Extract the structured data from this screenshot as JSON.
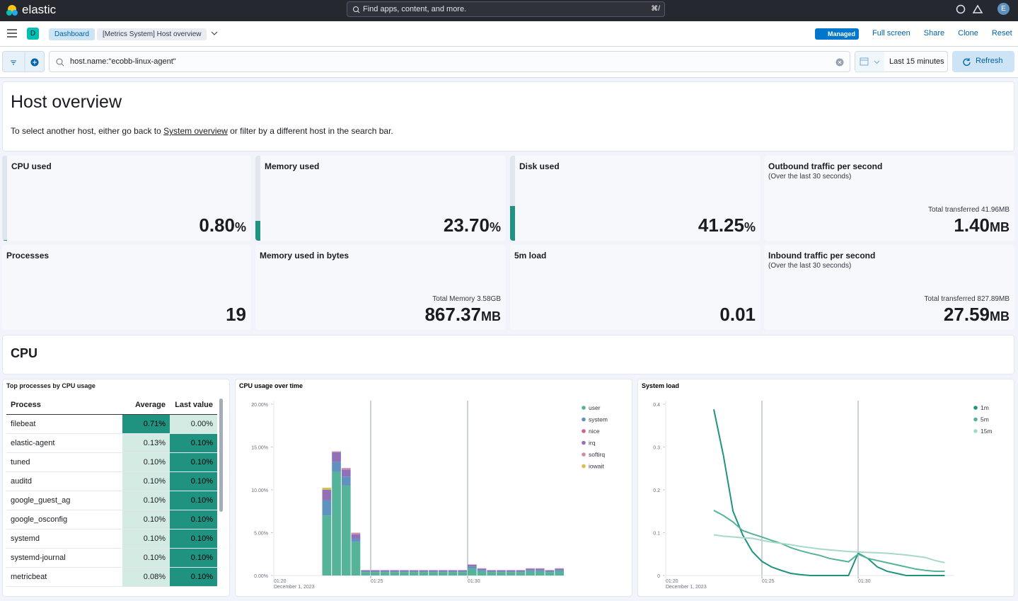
{
  "header": {
    "logo": "elastic",
    "search": "Find apps, content, and more.",
    "shortcut": "⌘/",
    "avatar": "E"
  },
  "nav": {
    "space": "D",
    "breadcrumbs": [
      "Dashboard",
      "[Metrics System] Host overview"
    ],
    "badge": "Managed",
    "actions": [
      "Full screen",
      "Share",
      "Clone",
      "Reset"
    ]
  },
  "query": {
    "text": "host.name:\"ecobb-linux-agent\"",
    "time": "Last 15 minutes",
    "refresh": "Refresh"
  },
  "intro": {
    "title": "Host overview",
    "text_before": "To select another host, either go back to ",
    "link": "System overview",
    "text_after": " or filter by a different host in the search bar."
  },
  "metrics": [
    {
      "title": "CPU used",
      "value": 0.8,
      "value_label": "0.80",
      "unit": "%",
      "gauge": true
    },
    {
      "title": "Memory used",
      "value": 23.7,
      "value_label": "23.70",
      "unit": "%",
      "gauge": true
    },
    {
      "title": "Disk used",
      "value": 41.25,
      "unit": "%",
      "gauge": true
    },
    {
      "title": "Outbound traffic per second",
      "subtitle": "(Over the last 30 seconds)",
      "note": "Total transferred 41.96MB",
      "value": 1.4,
      "value_label": "1.40",
      "unit": "MB"
    },
    {
      "title": "Processes",
      "value": 19
    },
    {
      "title": "Memory used in bytes",
      "note": "Total Memory 3.58GB",
      "value": 867.37,
      "unit": "MB"
    },
    {
      "title": "5m load",
      "value": 0.01
    },
    {
      "title": "Inbound traffic per second",
      "subtitle": "(Over the last 30 seconds)",
      "note": "Total transferred 827.89MB",
      "value": 27.59,
      "unit": "MB"
    }
  ],
  "section": {
    "title": "CPU"
  },
  "table": {
    "title": "Top processes by CPU usage",
    "columns": [
      "Process",
      "Average",
      "Last value"
    ],
    "rows": [
      [
        "filebeat",
        "0.71%",
        "0.00%"
      ],
      [
        "elastic-agent",
        "0.13%",
        "0.10%"
      ],
      [
        "tuned",
        "0.10%",
        "0.10%"
      ],
      [
        "auditd",
        "0.10%",
        "0.10%"
      ],
      [
        "google_guest_ag",
        "0.10%",
        "0.10%"
      ],
      [
        "google_osconfig",
        "0.10%",
        "0.10%"
      ],
      [
        "systemd",
        "0.10%",
        "0.10%"
      ],
      [
        "systemd-journal",
        "0.10%",
        "0.10%"
      ],
      [
        "metricbeat",
        "0.08%",
        "0.10%"
      ]
    ]
  },
  "chart_data": [
    {
      "type": "bar",
      "stacked": true,
      "title": "CPU usage over time",
      "x": [
        "01:22:30",
        "01:23:00",
        "01:23:30",
        "01:24:00",
        "01:24:30",
        "01:25:00",
        "01:25:30",
        "01:26:00",
        "01:26:30",
        "01:27:00",
        "01:27:30",
        "01:28:00",
        "01:28:30",
        "01:29:00",
        "01:29:30",
        "01:30:00",
        "01:30:30",
        "01:31:00",
        "01:31:30",
        "01:32:00",
        "01:32:30",
        "01:33:00",
        "01:33:30",
        "01:34:00",
        "01:34:30"
      ],
      "xlim": [
        "01:20",
        "01:35"
      ],
      "xticks": [
        "01:20",
        "01:25",
        "01:30"
      ],
      "x_subtitle": "December 1, 2023",
      "ylim": [
        0,
        20
      ],
      "yticks": [
        {
          "value": 0,
          "label": "0.00%"
        },
        {
          "value": 5,
          "label": "5.00%"
        },
        {
          "value": 10,
          "label": "10.00%"
        },
        {
          "value": 15,
          "label": "15.00%"
        },
        {
          "value": 20,
          "label": "20.00%"
        }
      ],
      "series": [
        {
          "name": "user",
          "color": "#54b399",
          "values": [
            7.0,
            12.1,
            10.5,
            3.9,
            0.4,
            0.4,
            0.4,
            0.4,
            0.4,
            0.4,
            0.4,
            0.4,
            0.4,
            0.4,
            0.4,
            0.8,
            0.5,
            0.4,
            0.4,
            0.4,
            0.4,
            0.5,
            0.5,
            0.4,
            0.5
          ]
        },
        {
          "name": "system",
          "color": "#6092c0",
          "values": [
            1.8,
            1.15,
            1.05,
            0.4,
            0.1,
            0.1,
            0.1,
            0.1,
            0.1,
            0.1,
            0.1,
            0.1,
            0.1,
            0.1,
            0.1,
            0.25,
            0.15,
            0.1,
            0.1,
            0.1,
            0.1,
            0.15,
            0.15,
            0.1,
            0.15
          ]
        },
        {
          "name": "nice",
          "color": "#d36086",
          "values": [
            0,
            0,
            0,
            0,
            0,
            0,
            0,
            0,
            0,
            0,
            0,
            0,
            0,
            0,
            0,
            0,
            0,
            0,
            0,
            0,
            0,
            0,
            0,
            0,
            0
          ]
        },
        {
          "name": "irq",
          "color": "#9170b8",
          "values": [
            1.2,
            1.15,
            0.8,
            0.5,
            0.1,
            0.1,
            0.1,
            0.1,
            0.1,
            0.1,
            0.1,
            0.1,
            0.1,
            0.1,
            0.1,
            0.2,
            0.15,
            0.1,
            0.1,
            0.1,
            0.1,
            0.15,
            0.15,
            0.1,
            0.15
          ]
        },
        {
          "name": "softirq",
          "color": "#ca8eae",
          "values": [
            0,
            0.1,
            0.2,
            0.2,
            0.05,
            0.05,
            0.05,
            0.05,
            0.05,
            0.05,
            0.05,
            0.05,
            0.05,
            0.05,
            0.05,
            0.05,
            0.05,
            0.05,
            0.05,
            0.05,
            0.05,
            0.05,
            0.05,
            0.05,
            0.05
          ]
        },
        {
          "name": "iowait",
          "color": "#d6bf57",
          "values": [
            0.25,
            0,
            0,
            0,
            0,
            0,
            0,
            0,
            0,
            0,
            0,
            0,
            0,
            0,
            0,
            0,
            0,
            0,
            0,
            0,
            0,
            0,
            0,
            0,
            0
          ]
        }
      ]
    },
    {
      "type": "line",
      "title": "System load",
      "x": [
        "01:22:30",
        "01:23:00",
        "01:23:30",
        "01:24:00",
        "01:24:30",
        "01:25:00",
        "01:25:30",
        "01:26:00",
        "01:26:30",
        "01:27:00",
        "01:27:30",
        "01:28:00",
        "01:28:30",
        "01:29:00",
        "01:29:30",
        "01:30:00",
        "01:30:30",
        "01:31:00",
        "01:31:30",
        "01:32:00",
        "01:32:30",
        "01:33:00",
        "01:33:30",
        "01:34:00",
        "01:34:30"
      ],
      "xlim": [
        "01:20",
        "01:35"
      ],
      "xticks": [
        "01:20",
        "01:25",
        "01:30"
      ],
      "x_subtitle": "December 1, 2023",
      "ylim": [
        0,
        0.4
      ],
      "yticks": [
        0,
        0.1,
        0.2,
        0.3,
        0.4
      ],
      "series": [
        {
          "name": "1m",
          "color": "#209280",
          "values": [
            0.388,
            0.28,
            0.15,
            0.095,
            0.056,
            0.033,
            0.02,
            0.012,
            0.005,
            0.002,
            0,
            0,
            0,
            0,
            0,
            0.052,
            0.04,
            0.02,
            0.01,
            0.005,
            0,
            0,
            0,
            0,
            0
          ]
        },
        {
          "name": "5m",
          "color": "#54b399",
          "values": [
            0.152,
            0.14,
            0.125,
            0.105,
            0.097,
            0.09,
            0.082,
            0.075,
            0.065,
            0.058,
            0.052,
            0.047,
            0.04,
            0.036,
            0.032,
            0.05,
            0.04,
            0.035,
            0.03,
            0.025,
            0.02,
            0.015,
            0.012,
            0.01,
            0.01
          ]
        },
        {
          "name": "15m",
          "color": "#a6d9c8",
          "values": [
            0.095,
            0.092,
            0.09,
            0.088,
            0.087,
            0.082,
            0.078,
            0.075,
            0.072,
            0.068,
            0.065,
            0.062,
            0.06,
            0.058,
            0.056,
            0.055,
            0.054,
            0.053,
            0.052,
            0.05,
            0.048,
            0.045,
            0.042,
            0.035,
            0.03
          ]
        }
      ]
    }
  ]
}
